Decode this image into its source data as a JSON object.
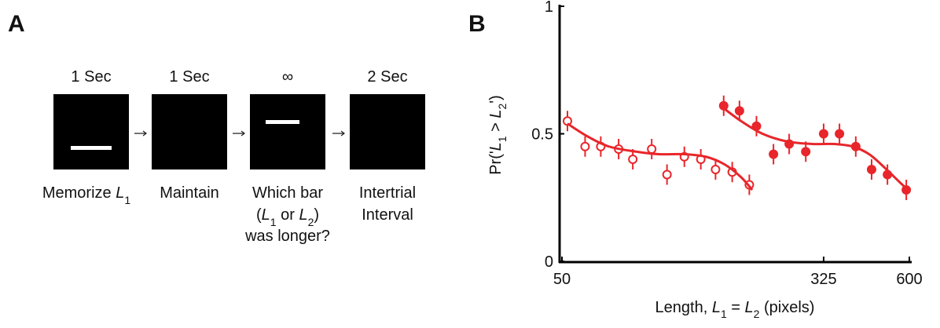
{
  "panel_a": {
    "label": "A",
    "steps": [
      {
        "duration": "1 Sec",
        "caption": [
          "Memorize ",
          "L",
          "1"
        ]
      },
      {
        "duration": "1 Sec",
        "caption": [
          "Maintain"
        ]
      },
      {
        "duration": "∞",
        "caption": [
          "Which bar",
          "(",
          "L",
          "1",
          " or ",
          "L",
          "2",
          ")",
          "was longer?"
        ]
      },
      {
        "duration": "2 Sec",
        "caption": [
          "Intertrial",
          "Interval"
        ]
      }
    ]
  },
  "chart_data": {
    "type": "scatter",
    "label": "B",
    "ylabel": [
      "Pr('",
      "L",
      "1",
      " > ",
      "L",
      "2",
      "')"
    ],
    "xlabel": [
      "Length, ",
      "L",
      "1",
      " = ",
      "L",
      "2",
      " (pixels)"
    ],
    "xscale": "log",
    "xlim": [
      50,
      600
    ],
    "xticks": [
      50,
      325,
      600
    ],
    "ylim": [
      0,
      1
    ],
    "yticks": [
      0,
      0.5,
      1
    ],
    "series": [
      {
        "color": "#e8262b",
        "marker": "open",
        "x": [
          52,
          59,
          66,
          75,
          83,
          95,
          106,
          120,
          135,
          150,
          169,
          191
        ],
        "values": [
          0.55,
          0.45,
          0.45,
          0.44,
          0.4,
          0.44,
          0.34,
          0.41,
          0.4,
          0.36,
          0.35,
          0.3
        ],
        "errors": [
          0.04,
          0.04,
          0.04,
          0.04,
          0.04,
          0.04,
          0.04,
          0.04,
          0.04,
          0.04,
          0.04,
          0.04
        ]
      },
      {
        "color": "#e8262b",
        "marker": "filled",
        "x": [
          159,
          178,
          201,
          227,
          254,
          286,
          325,
          364,
          409,
          458,
          513,
          587
        ],
        "values": [
          0.61,
          0.59,
          0.53,
          0.42,
          0.46,
          0.43,
          0.5,
          0.5,
          0.45,
          0.36,
          0.34,
          0.28
        ],
        "errors": [
          0.04,
          0.04,
          0.04,
          0.04,
          0.04,
          0.04,
          0.04,
          0.04,
          0.04,
          0.04,
          0.04,
          0.04
        ]
      },
      {
        "color": "#e8262b",
        "marker": "line",
        "x": [
          52,
          60,
          70,
          85,
          100,
          120,
          140,
          160,
          180,
          195
        ],
        "values": [
          0.54,
          0.49,
          0.45,
          0.43,
          0.42,
          0.42,
          0.41,
          0.38,
          0.33,
          0.28
        ]
      },
      {
        "color": "#e8262b",
        "marker": "line",
        "x": [
          159,
          180,
          210,
          250,
          300,
          350,
          400,
          450,
          500,
          560,
          595
        ],
        "values": [
          0.6,
          0.55,
          0.5,
          0.47,
          0.46,
          0.46,
          0.45,
          0.42,
          0.37,
          0.31,
          0.28
        ]
      }
    ]
  }
}
